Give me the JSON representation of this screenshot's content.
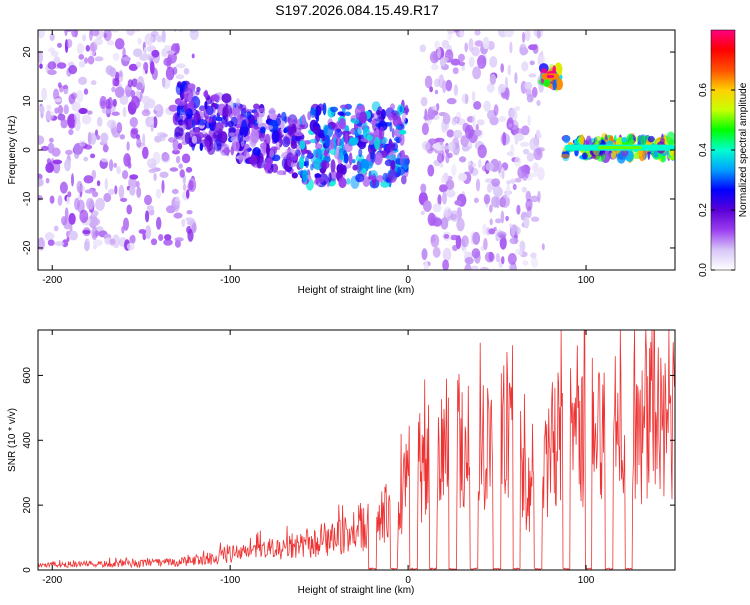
{
  "figure_title": "S197.2026.084.15.49.R17",
  "chart_data": [
    {
      "type": "heatmap",
      "title": "S197.2026.084.15.49.R17",
      "xlabel": "Height of straight line (km)",
      "ylabel": "Frequency (Hz)",
      "xlim": [
        -208,
        150
      ],
      "ylim": [
        -24.5,
        24.5
      ],
      "xticks": [
        -200,
        -100,
        0,
        100
      ],
      "yticks": [
        -20,
        -10,
        0,
        10,
        20
      ],
      "colorbar": {
        "label": "Normalized spectral amplitude",
        "range": [
          0.0,
          0.8
        ],
        "ticks": [
          "0.0",
          "0.2",
          "0.4",
          "0.6"
        ],
        "tick_values": [
          0.0,
          0.2,
          0.4,
          0.6
        ],
        "colors": [
          "#ffffff",
          "#d8c7f7",
          "#9b3df0",
          "#5a00d6",
          "#0000ff",
          "#00a0ff",
          "#00ffd0",
          "#00ff00",
          "#c8ff00",
          "#ffd000",
          "#ff5000",
          "#ff0000",
          "#ff0080"
        ]
      },
      "regions": [
        {
          "x": [
            -208,
            -120
          ],
          "freq_center": 5,
          "freq_spread": 25,
          "amplitude": 0.12,
          "description": "diffuse purple noise"
        },
        {
          "x": [
            -130,
            -60
          ],
          "freq_center": 6,
          "freq_spread": 12,
          "amplitude": 0.22,
          "description": "stronger blue-purple band drifting from +8 Hz to 0 Hz"
        },
        {
          "x": [
            -60,
            0
          ],
          "freq_center": 1,
          "freq_spread": 8,
          "amplitude": 0.3,
          "description": "blue-cyan band near 0 Hz"
        },
        {
          "x": [
            8,
            76
          ],
          "freq_center": 0,
          "freq_spread": 25,
          "amplitude": 0.1,
          "description": "full-band light purple noise"
        },
        {
          "x": [
            75,
            85
          ],
          "freq_center": 15,
          "freq_spread": 2,
          "amplitude": 0.8,
          "description": "peak red at ~15 Hz"
        },
        {
          "x": [
            88,
            150
          ],
          "freq_center": 0.5,
          "freq_spread": 2,
          "amplitude": 0.5,
          "description": "narrow green-red line near 0 Hz"
        }
      ]
    },
    {
      "type": "line",
      "xlabel": "Height of straight line (km)",
      "ylabel": "SNR (10 * v/v)",
      "xlim": [
        -208,
        150
      ],
      "ylim": [
        0,
        740
      ],
      "xticks": [
        -200,
        -100,
        0,
        100
      ],
      "yticks": [
        0,
        200,
        400,
        600
      ],
      "series": [
        {
          "name": "SNR",
          "color": "#ee3333",
          "x": [
            -208,
            -180,
            -150,
            -130,
            -110,
            -100,
            -80,
            -60,
            -40,
            -20,
            -10,
            0,
            10,
            20,
            30,
            40,
            50,
            60,
            65,
            70,
            75,
            80,
            90,
            100,
            110,
            120,
            130,
            140,
            150
          ],
          "y": [
            20,
            22,
            25,
            30,
            45,
            60,
            75,
            90,
            120,
            170,
            250,
            330,
            400,
            460,
            500,
            520,
            530,
            480,
            330,
            280,
            270,
            480,
            500,
            520,
            530,
            540,
            560,
            570,
            580
          ],
          "dropouts": [
            -20,
            -8,
            3,
            14,
            25,
            37,
            50,
            61,
            73,
            89,
            101,
            113,
            124
          ],
          "peak": {
            "x": 99,
            "y": 740
          }
        }
      ]
    }
  ]
}
